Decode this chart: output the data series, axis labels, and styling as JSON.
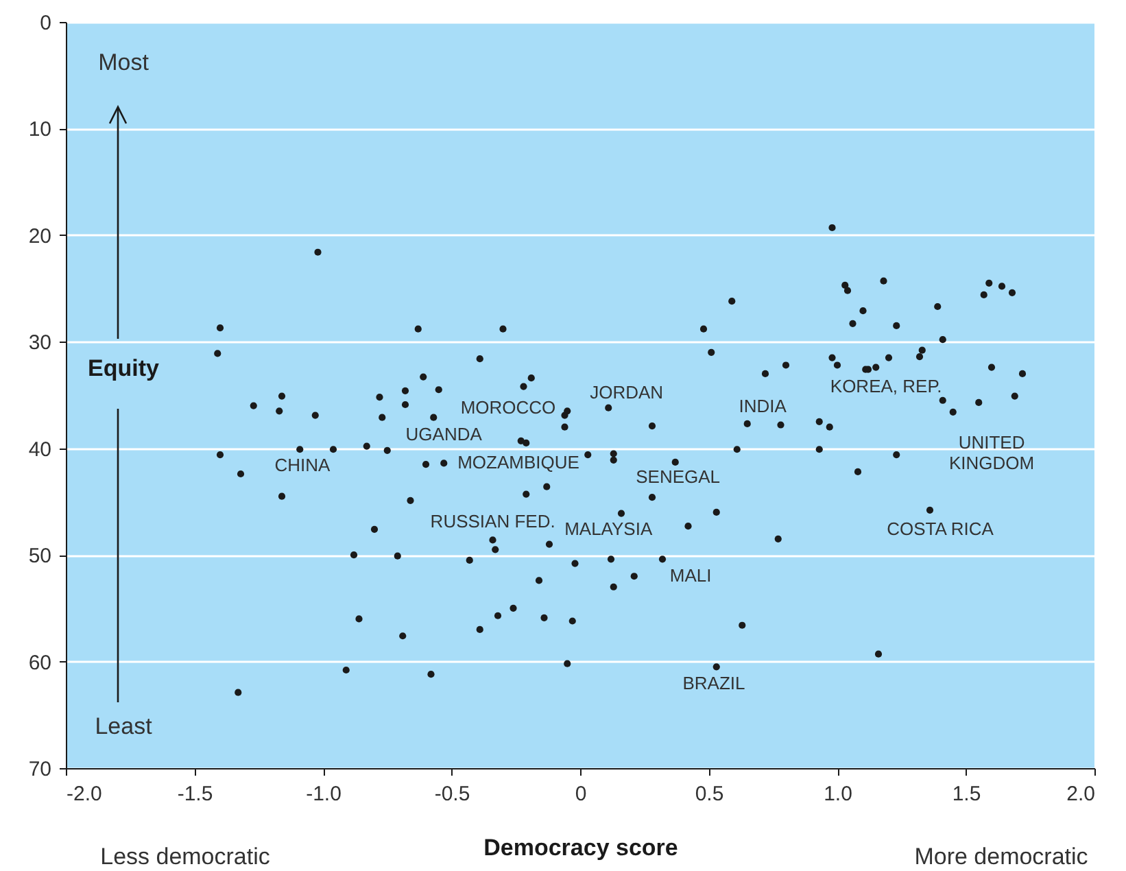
{
  "chart_data": {
    "type": "scatter",
    "xlabel": "Democracy score",
    "ylabel": "Equity",
    "xlim": [
      -2,
      2
    ],
    "ylim": [
      70,
      0
    ],
    "xticks": [
      {
        "value": -2,
        "label": "-2.0"
      },
      -1.5,
      {
        "value": -1,
        "label": "-1.0"
      },
      -0.5,
      {
        "value": 0,
        "label": "0"
      },
      0.5,
      {
        "value": 1,
        "label": "1.0"
      },
      1.5,
      {
        "value": 2,
        "label": "2.0"
      }
    ],
    "yticks": [
      0,
      10,
      20,
      30,
      40,
      50,
      60,
      70
    ],
    "grid": "y",
    "marker": "circle",
    "series": [
      {
        "color": "#1a1a1a",
        "x": [
          -1.4,
          -1.41,
          -1.02,
          -0.39,
          -0.63,
          -0.3,
          -0.61,
          -0.22,
          -0.19,
          -0.68,
          -0.55,
          -0.78,
          -1.16,
          -1.27,
          -1.17,
          -1.03,
          -0.77,
          -0.68,
          -0.57,
          -0.06,
          -0.05,
          -0.06,
          -0.23,
          -0.21,
          -1.4,
          -1.32,
          -1.09,
          -0.96,
          -0.83,
          -0.75,
          -0.6,
          -0.53,
          0.03,
          -1.16,
          -0.21,
          -0.13,
          -0.66,
          -0.8,
          -0.88,
          -0.71,
          -0.43,
          -0.34,
          -0.33,
          -0.12,
          -0.02,
          -0.16,
          -0.86,
          -0.69,
          -0.39,
          -0.32,
          -0.26,
          -0.14,
          -0.03,
          -0.91,
          -0.58,
          -0.05,
          -1.33,
          0.98,
          1.03,
          1.04,
          1.18,
          1.1,
          1.06,
          1.23,
          1.39,
          1.41,
          1.59,
          1.57,
          1.64,
          1.68,
          0.59,
          0.48,
          0.51,
          0.72,
          0.8,
          0.98,
          1.0,
          1.11,
          1.12,
          1.15,
          1.2,
          1.32,
          1.33,
          1.6,
          1.72,
          1.41,
          1.45,
          1.55,
          1.69,
          0.11,
          0.28,
          0.65,
          0.78,
          0.93,
          0.97,
          0.61,
          0.93,
          1.23,
          1.08,
          0.13,
          0.13,
          0.37,
          0.28,
          0.16,
          0.53,
          0.42,
          0.77,
          1.36,
          0.12,
          0.32,
          0.21,
          0.13,
          0.63,
          1.16,
          0.53
        ],
        "values": [
          28.7,
          31.1,
          21.6,
          31.6,
          28.8,
          28.8,
          33.3,
          34.2,
          33.4,
          34.6,
          34.5,
          35.2,
          35.1,
          36.0,
          36.5,
          36.9,
          37.1,
          35.9,
          37.1,
          36.9,
          36.5,
          38.0,
          39.3,
          39.5,
          40.6,
          42.4,
          40.1,
          40.1,
          39.8,
          40.2,
          41.5,
          41.4,
          40.6,
          44.5,
          44.3,
          43.6,
          44.9,
          47.6,
          50.0,
          50.1,
          50.5,
          48.6,
          49.5,
          49.0,
          50.8,
          52.4,
          56.0,
          57.6,
          57.0,
          55.7,
          55.0,
          55.9,
          56.2,
          60.8,
          61.2,
          60.2,
          62.9,
          19.3,
          24.7,
          25.2,
          24.3,
          27.1,
          28.3,
          28.5,
          26.7,
          29.8,
          24.5,
          25.6,
          24.8,
          25.4,
          26.2,
          28.8,
          31.0,
          33.0,
          32.2,
          31.5,
          32.2,
          32.6,
          32.6,
          32.4,
          31.5,
          31.4,
          30.8,
          32.4,
          33.0,
          35.5,
          36.6,
          35.7,
          35.1,
          36.2,
          37.9,
          37.7,
          37.8,
          37.5,
          38.0,
          40.1,
          40.1,
          40.6,
          42.2,
          40.5,
          41.1,
          41.3,
          44.6,
          46.1,
          46.0,
          47.3,
          48.5,
          45.8,
          50.4,
          50.4,
          52.0,
          53.0,
          56.6,
          59.3,
          60.5
        ]
      }
    ],
    "annotations": [
      "CHINA",
      "MOROCCO",
      "UGANDA",
      "MOZAMBIQUE",
      "RUSSIAN FED.",
      "MALAYSIA",
      "JORDAN",
      "SENEGAL",
      "MALI",
      "BRAZIL",
      "INDIA",
      "KOREA, REP.",
      "UNITED\nKINGDOM",
      "COSTA RICA",
      "Most",
      "Least",
      "Less democratic",
      "More democratic"
    ]
  }
}
